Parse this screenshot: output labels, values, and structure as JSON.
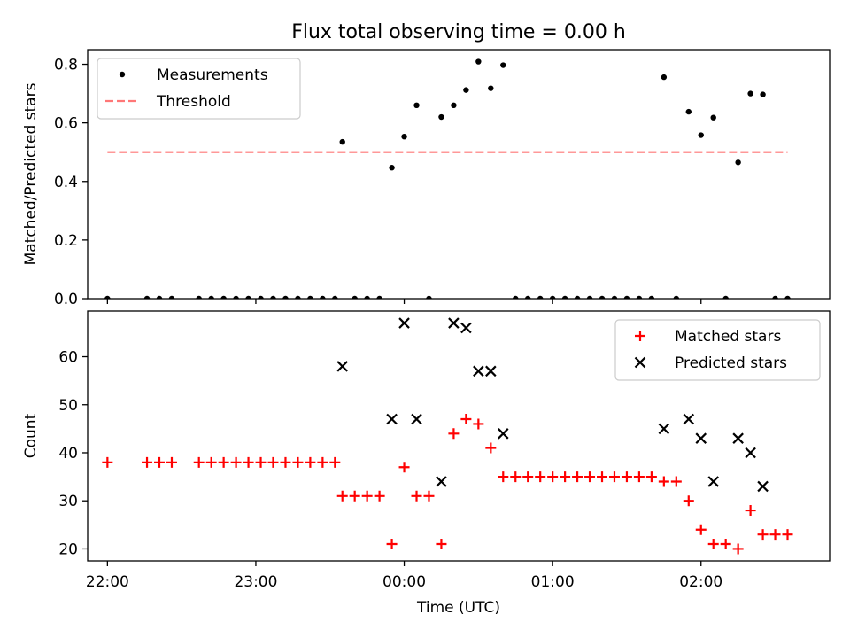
{
  "chart_data": [
    {
      "type": "scatter",
      "title": "Flux total observing time = 0.00 h",
      "xlabel": "",
      "ylabel": "Matched/Predicted stars",
      "xlim": [
        "21:52",
        "02:52"
      ],
      "ylim": [
        0,
        0.85
      ],
      "yticks": [
        0.0,
        0.2,
        0.4,
        0.6,
        0.8
      ],
      "grid": false,
      "legend": "top-left",
      "series": [
        {
          "name": "Measurements",
          "marker": "dot",
          "color": "#000000",
          "points": [
            [
              "22:00",
              0
            ],
            [
              "22:16",
              0
            ],
            [
              "22:21",
              0
            ],
            [
              "22:26",
              0
            ],
            [
              "22:37",
              0
            ],
            [
              "22:42",
              0
            ],
            [
              "22:47",
              0
            ],
            [
              "22:52",
              0
            ],
            [
              "22:57",
              0
            ],
            [
              "23:02",
              0
            ],
            [
              "23:07",
              0
            ],
            [
              "23:12",
              0
            ],
            [
              "23:17",
              0
            ],
            [
              "23:22",
              0
            ],
            [
              "23:27",
              0
            ],
            [
              "23:32",
              0
            ],
            [
              "23:35",
              0.535
            ],
            [
              "23:40",
              0
            ],
            [
              "23:45",
              0
            ],
            [
              "23:50",
              0
            ],
            [
              "23:55",
              0.447
            ],
            [
              "00:00",
              0.553
            ],
            [
              "00:05",
              0.66
            ],
            [
              "00:10",
              0
            ],
            [
              "00:15",
              0.62
            ],
            [
              "00:20",
              0.66
            ],
            [
              "00:25",
              0.712
            ],
            [
              "00:30",
              0.809
            ],
            [
              "00:35",
              0.718
            ],
            [
              "00:40",
              0.797
            ],
            [
              "00:45",
              0
            ],
            [
              "00:50",
              0
            ],
            [
              "00:55",
              0
            ],
            [
              "01:00",
              0
            ],
            [
              "01:05",
              0
            ],
            [
              "01:10",
              0
            ],
            [
              "01:15",
              0
            ],
            [
              "01:20",
              0
            ],
            [
              "01:25",
              0
            ],
            [
              "01:30",
              0
            ],
            [
              "01:35",
              0
            ],
            [
              "01:40",
              0
            ],
            [
              "01:45",
              0.756
            ],
            [
              "01:50",
              0
            ],
            [
              "01:55",
              0.638
            ],
            [
              "02:00",
              0.558
            ],
            [
              "02:05",
              0.618
            ],
            [
              "02:10",
              0
            ],
            [
              "02:15",
              0.465
            ],
            [
              "02:20",
              0.7
            ],
            [
              "02:25",
              0.697
            ],
            [
              "02:30",
              0
            ],
            [
              "02:35",
              0
            ]
          ]
        },
        {
          "name": "Threshold",
          "style": "dashed",
          "color": "#ff7777",
          "points": [
            [
              "22:00",
              0.5
            ],
            [
              "02:35",
              0.5
            ]
          ]
        }
      ]
    },
    {
      "type": "scatter",
      "title": "",
      "xlabel": "Time (UTC)",
      "ylabel": "Count",
      "xlim": [
        "21:52",
        "02:52"
      ],
      "ylim": [
        17.5,
        69.5
      ],
      "yticks": [
        20,
        30,
        40,
        50,
        60
      ],
      "xticks": [
        "22:00",
        "23:00",
        "00:00",
        "01:00",
        "02:00"
      ],
      "grid": false,
      "legend": "top-right",
      "series": [
        {
          "name": "Matched stars",
          "marker": "plus",
          "color": "#ff0000",
          "points": [
            [
              "22:00",
              38
            ],
            [
              "22:16",
              38
            ],
            [
              "22:21",
              38
            ],
            [
              "22:26",
              38
            ],
            [
              "22:37",
              38
            ],
            [
              "22:42",
              38
            ],
            [
              "22:47",
              38
            ],
            [
              "22:52",
              38
            ],
            [
              "22:57",
              38
            ],
            [
              "23:02",
              38
            ],
            [
              "23:07",
              38
            ],
            [
              "23:12",
              38
            ],
            [
              "23:17",
              38
            ],
            [
              "23:22",
              38
            ],
            [
              "23:27",
              38
            ],
            [
              "23:32",
              38
            ],
            [
              "23:35",
              31
            ],
            [
              "23:40",
              31
            ],
            [
              "23:45",
              31
            ],
            [
              "23:50",
              31
            ],
            [
              "23:55",
              21
            ],
            [
              "00:00",
              37
            ],
            [
              "00:05",
              31
            ],
            [
              "00:10",
              31
            ],
            [
              "00:15",
              21
            ],
            [
              "00:20",
              44
            ],
            [
              "00:25",
              47
            ],
            [
              "00:30",
              46
            ],
            [
              "00:35",
              41
            ],
            [
              "00:40",
              35
            ],
            [
              "00:45",
              35
            ],
            [
              "00:50",
              35
            ],
            [
              "00:55",
              35
            ],
            [
              "01:00",
              35
            ],
            [
              "01:05",
              35
            ],
            [
              "01:10",
              35
            ],
            [
              "01:15",
              35
            ],
            [
              "01:20",
              35
            ],
            [
              "01:25",
              35
            ],
            [
              "01:30",
              35
            ],
            [
              "01:35",
              35
            ],
            [
              "01:40",
              35
            ],
            [
              "01:45",
              34
            ],
            [
              "01:50",
              34
            ],
            [
              "01:55",
              30
            ],
            [
              "02:00",
              24
            ],
            [
              "02:05",
              21
            ],
            [
              "02:10",
              21
            ],
            [
              "02:15",
              20
            ],
            [
              "02:20",
              28
            ],
            [
              "02:25",
              23
            ],
            [
              "02:30",
              23
            ],
            [
              "02:35",
              23
            ]
          ]
        },
        {
          "name": "Predicted stars",
          "marker": "x",
          "color": "#000000",
          "points": [
            [
              "23:35",
              58
            ],
            [
              "23:55",
              47
            ],
            [
              "00:00",
              67
            ],
            [
              "00:05",
              47
            ],
            [
              "00:15",
              34
            ],
            [
              "00:20",
              67
            ],
            [
              "00:25",
              66
            ],
            [
              "00:30",
              57
            ],
            [
              "00:35",
              57
            ],
            [
              "00:40",
              44
            ],
            [
              "01:45",
              45
            ],
            [
              "01:55",
              47
            ],
            [
              "02:00",
              43
            ],
            [
              "02:05",
              34
            ],
            [
              "02:15",
              43
            ],
            [
              "02:20",
              40
            ],
            [
              "02:25",
              33
            ]
          ]
        }
      ]
    }
  ]
}
